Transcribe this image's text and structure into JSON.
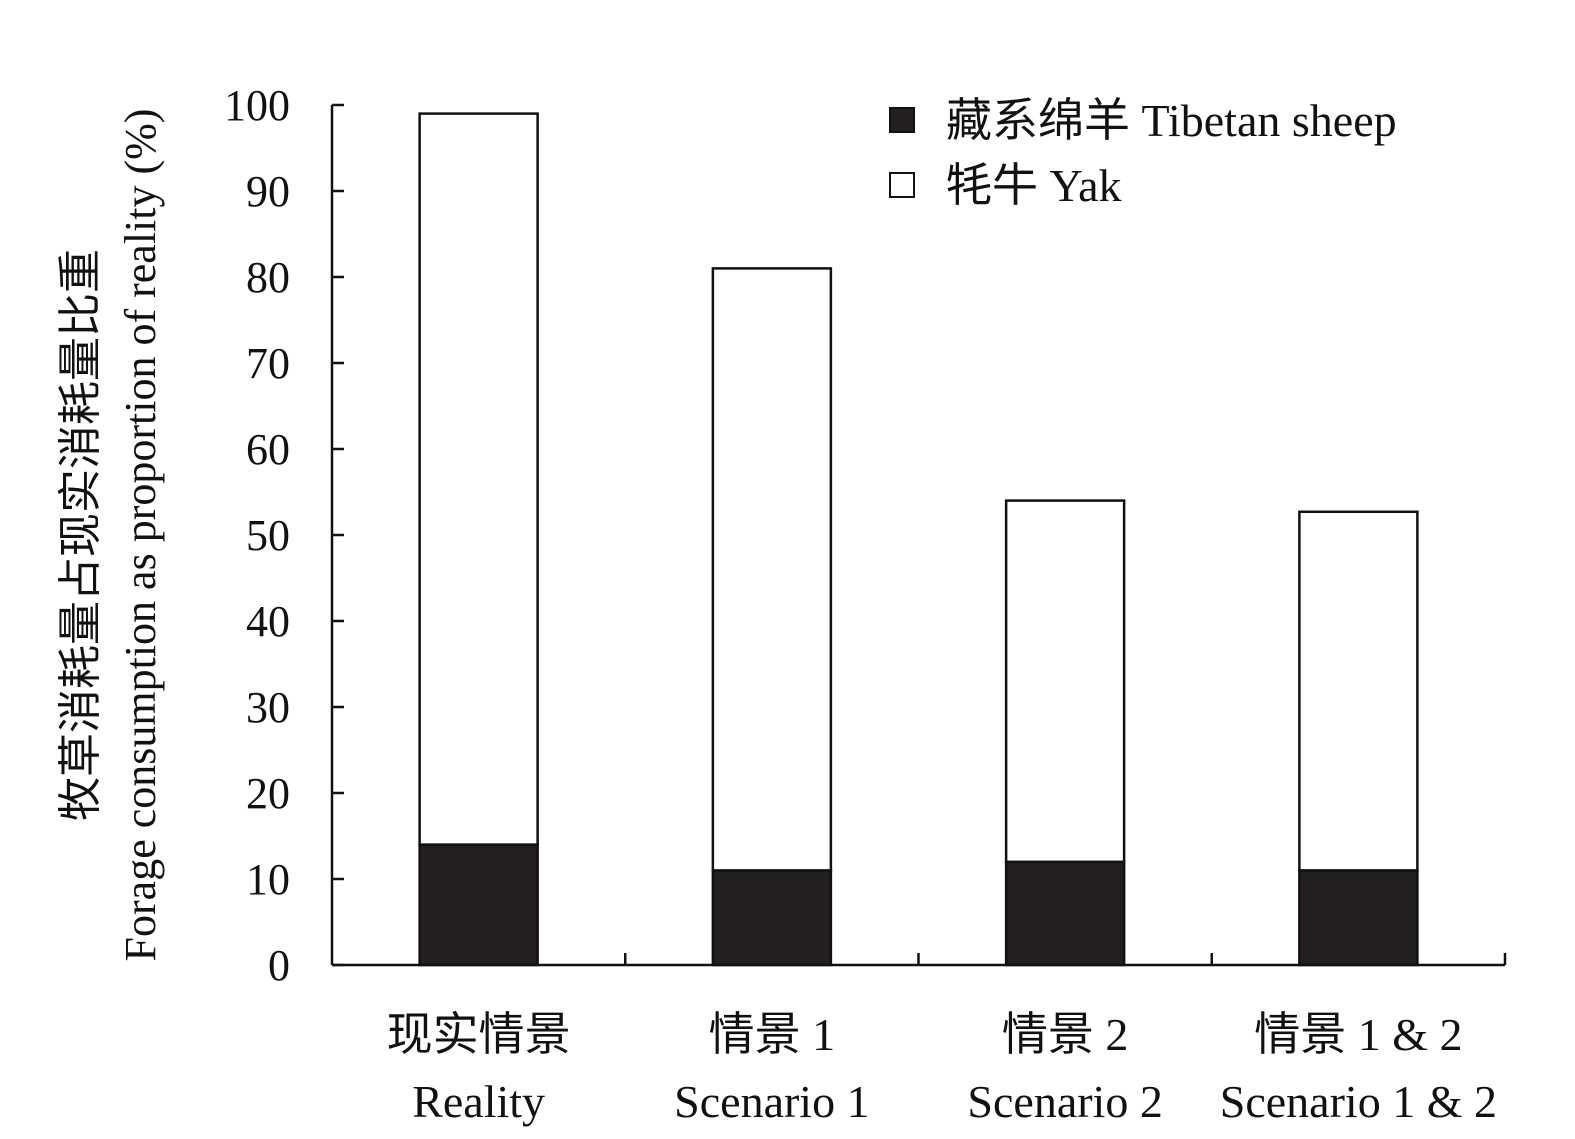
{
  "chart_data": {
    "type": "bar",
    "stacked": true,
    "categories": [
      {
        "zh": "现实情景",
        "en": "Reality"
      },
      {
        "zh": "情景 1",
        "en": "Scenario 1"
      },
      {
        "zh": "情景 2",
        "en": "Scenario 2"
      },
      {
        "zh": "情景 1 & 2",
        "en": "Scenario 1 & 2"
      }
    ],
    "series": [
      {
        "name": "藏系绵羊 Tibetan sheep",
        "values": [
          14,
          11,
          12,
          11
        ],
        "color": "#231f20"
      },
      {
        "name": "牦牛 Yak",
        "values": [
          85,
          70,
          42,
          41.7
        ],
        "color": "#ffffff"
      }
    ],
    "ylabel_zh": "牧草消耗量占现实消耗量比重",
    "ylabel_en": "Forage consumption as proportion of reality (%)",
    "ylim": [
      0,
      100
    ],
    "yticks": [
      0,
      10,
      20,
      30,
      40,
      50,
      60,
      70,
      80,
      90,
      100
    ],
    "grid": false,
    "legend_position": "top-right"
  }
}
